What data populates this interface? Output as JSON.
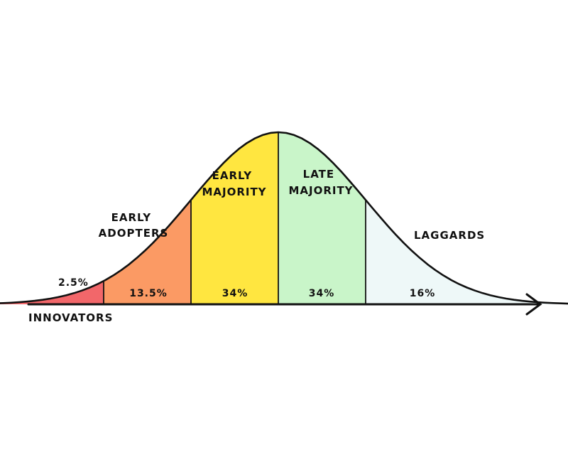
{
  "segments": [
    {
      "id": "innovators",
      "label_lines": [
        "INNOVATORS"
      ],
      "percent": "2.5%",
      "color": "#f2676a"
    },
    {
      "id": "early-adopters",
      "label_lines": [
        "EARLY",
        "ADOPTERS"
      ],
      "percent": "13.5%",
      "color": "#fb9a64"
    },
    {
      "id": "early-majority",
      "label_lines": [
        "EARLY",
        "MAJORITY"
      ],
      "percent": "34%",
      "color": "#ffe640"
    },
    {
      "id": "late-majority",
      "label_lines": [
        "LATE",
        "MAJORITY"
      ],
      "percent": "34%",
      "color": "#c9f5c9"
    },
    {
      "id": "laggards",
      "label_lines": [
        "LAGGARDS"
      ],
      "percent": "16%",
      "color": "#eef8f8"
    }
  ],
  "boundaries_sigma": [
    -2,
    -1,
    0,
    1
  ],
  "curve_range_sigma": [
    -3.6,
    3.6
  ]
}
